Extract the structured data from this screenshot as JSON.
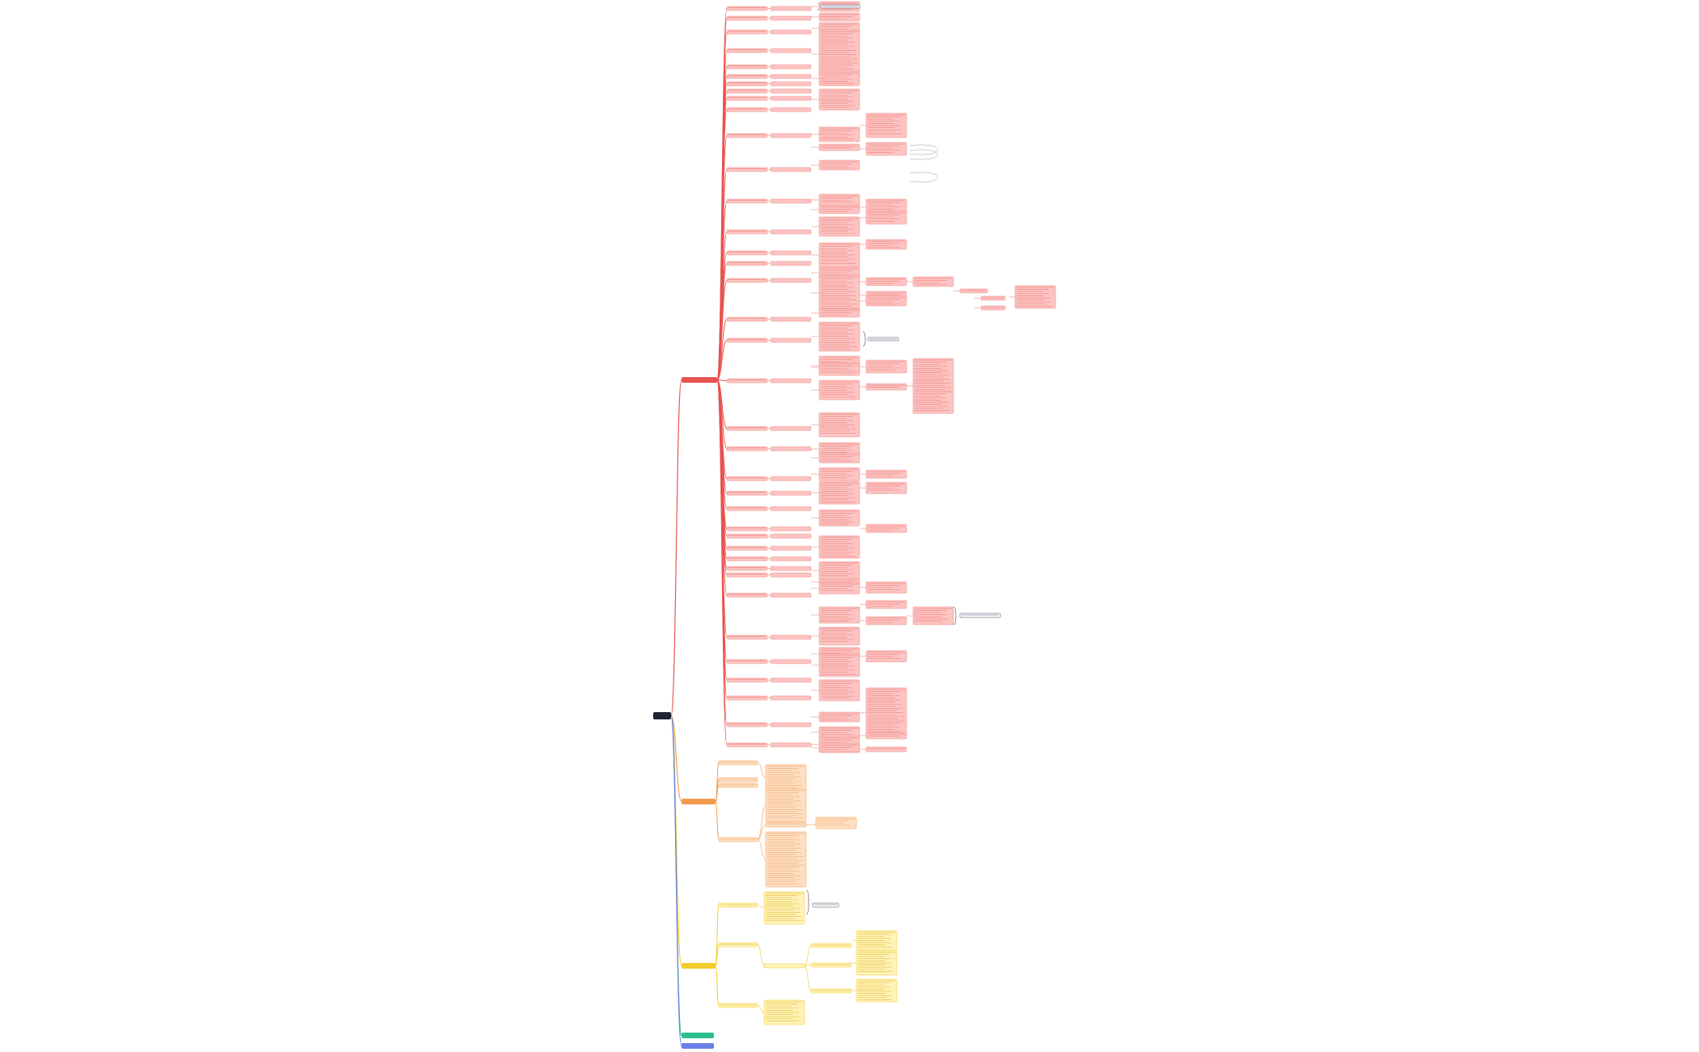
{
  "colors": {
    "root": "#1f2333",
    "branch1": "#e8524f",
    "branch1_node_fill": "#fcc4c2",
    "branch1_node_stroke": "#ef8a86",
    "branch2": "#f39b4d",
    "branch2_node_fill": "#fde0c4",
    "branch3": "#f2cc2b",
    "branch3_node_fill": "#fff2b8",
    "branch4": "#2fbf8f",
    "branch5": "#6b7fe8",
    "note_stroke": "#3a3f55"
  },
  "root": {
    "label": "",
    "icon": "root-node"
  },
  "branches": [
    {
      "key": "b1",
      "label": ""
    },
    {
      "key": "b2",
      "label": ""
    },
    {
      "key": "b3",
      "label": ""
    },
    {
      "key": "b4",
      "label": ""
    },
    {
      "key": "b5",
      "label": ""
    }
  ]
}
